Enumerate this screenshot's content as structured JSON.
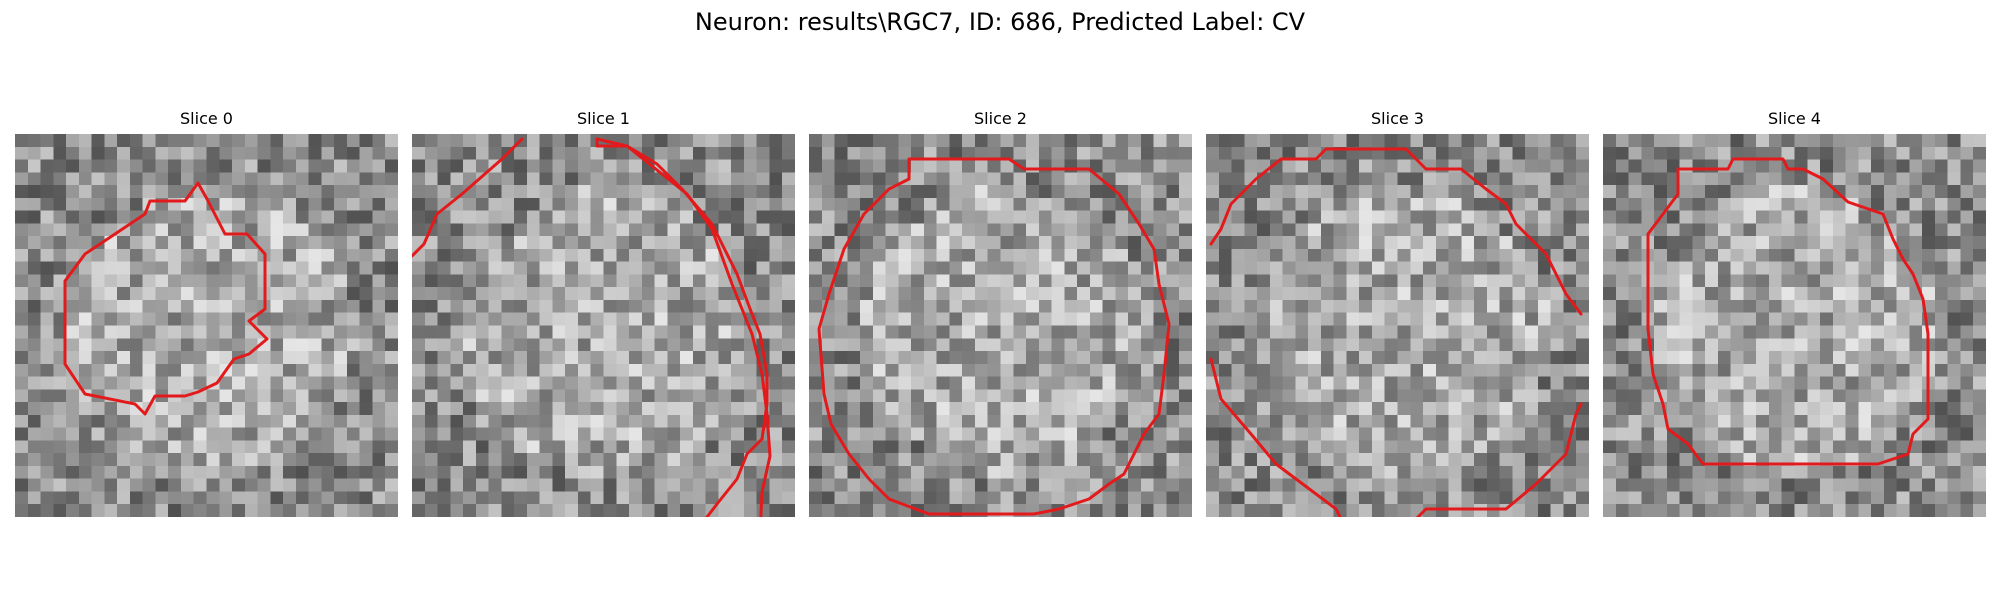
{
  "figure": {
    "title": "Neuron: results\\RGC7, ID: 686, Predicted Label: CV"
  },
  "colors": {
    "contour": "#e31a1c",
    "background": "#ffffff"
  },
  "panels": [
    {
      "title": "Slice 0"
    },
    {
      "title": "Slice 1"
    },
    {
      "title": "Slice 2"
    },
    {
      "title": "Slice 3"
    },
    {
      "title": "Slice 4"
    }
  ]
}
